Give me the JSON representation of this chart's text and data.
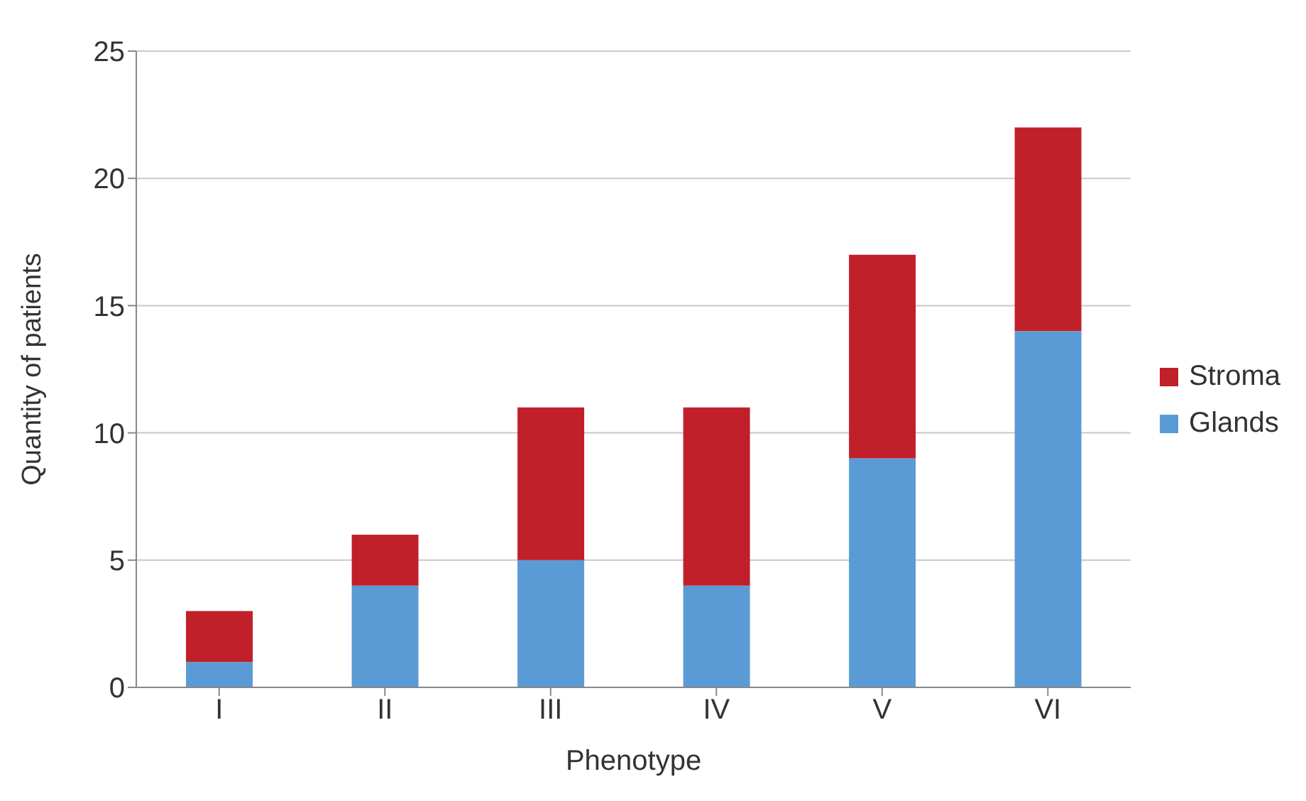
{
  "chart_data": {
    "type": "bar",
    "xlabel": "Phenotype",
    "ylabel": "Quantity of patients",
    "categories": [
      "I",
      "II",
      "III",
      "IV",
      "V",
      "VI"
    ],
    "series": [
      {
        "name": "Glands",
        "color": "#5b9bd5",
        "values": [
          1,
          4,
          5,
          4,
          9,
          14
        ]
      },
      {
        "name": "Stroma",
        "color": "#c0202a",
        "values": [
          2,
          2,
          6,
          7,
          8,
          8
        ]
      }
    ],
    "stacked": true,
    "ylim": [
      0,
      25
    ],
    "yticks": [
      0,
      5,
      10,
      15,
      20,
      25
    ],
    "grid": "y",
    "legend": "right"
  }
}
